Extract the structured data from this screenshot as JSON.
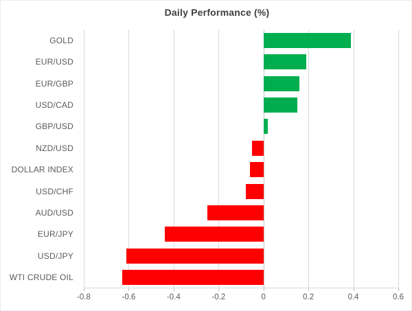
{
  "chart_data": {
    "type": "bar",
    "orientation": "horizontal",
    "title": "Daily Performance (%)",
    "categories": [
      "GOLD",
      "EUR/USD",
      "EUR/GBP",
      "USD/CAD",
      "GBP/USD",
      "NZD/USD",
      "DOLLAR INDEX",
      "USD/CHF",
      "AUD/USD",
      "EUR/JPY",
      "USD/JPY",
      "WTI CRUDE OIL"
    ],
    "values": [
      0.39,
      0.19,
      0.16,
      0.15,
      0.02,
      -0.05,
      -0.06,
      -0.08,
      -0.25,
      -0.44,
      -0.61,
      -0.63
    ],
    "xlabel": "",
    "ylabel": "",
    "xlim": [
      -0.8,
      0.6
    ],
    "xticks": [
      "-0.8",
      "-0.6",
      "-0.4",
      "-0.2",
      "0",
      "0.2",
      "0.4",
      "0.6"
    ],
    "xtick_values": [
      -0.8,
      -0.6,
      -0.4,
      -0.2,
      0,
      0.2,
      0.4,
      0.6
    ],
    "grid": true,
    "legend": false,
    "positive_color": "#00ae50",
    "negative_color": "#fe0000",
    "gridline_color": "#d9d9d9",
    "axis_text_color": "#595959",
    "title_color": "#3f3f3f"
  }
}
